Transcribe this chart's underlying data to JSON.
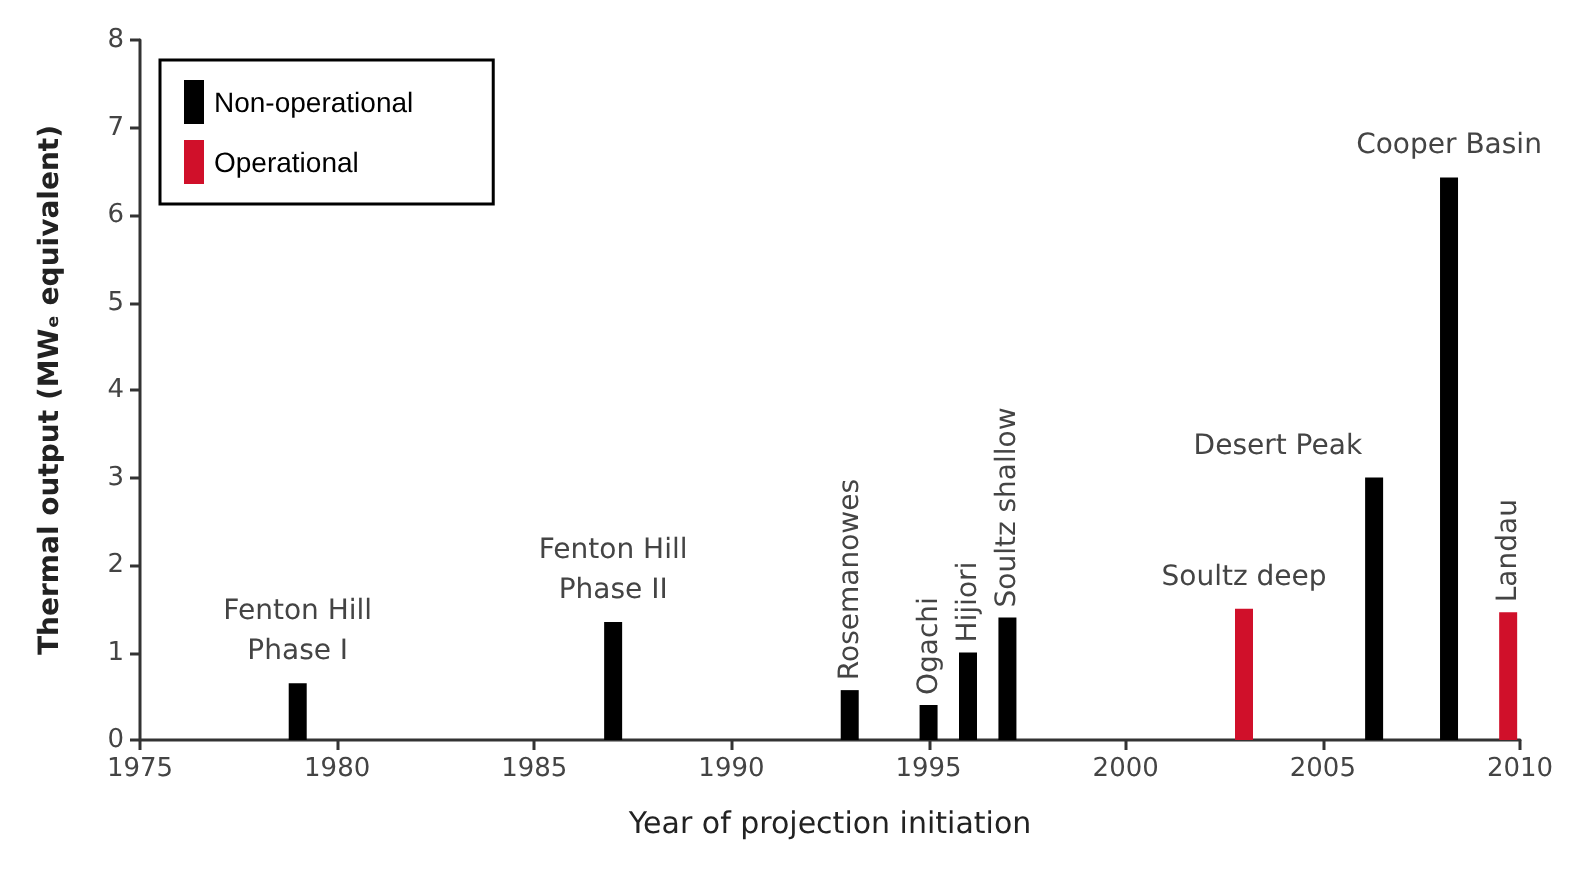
{
  "chart_data": {
    "type": "bar",
    "xlabel": "Year of projection initiation",
    "ylabel": "Thermal output (MWₑ equivalent)",
    "xlim": [
      1975,
      2010
    ],
    "xticks": [
      1975,
      1980,
      1985,
      1990,
      1995,
      2000,
      2005,
      2010
    ],
    "ylim": [
      0,
      8
    ],
    "yticks": [
      0,
      1,
      2,
      3,
      4,
      5,
      6,
      7,
      8
    ],
    "legend": "top left",
    "grid": false,
    "series": [
      {
        "name": "Non-operational",
        "color": "#000000",
        "x": [
          1979,
          1987,
          1993,
          1995,
          1996,
          1997,
          2006.3,
          2008.2
        ],
        "values": [
          0.65,
          1.35,
          0.57,
          0.4,
          1.0,
          1.4,
          3.0,
          6.43
        ]
      },
      {
        "name": "Operational",
        "color": "#d0102a",
        "x": [
          2003,
          2009.7
        ],
        "values": [
          1.5,
          1.46
        ]
      }
    ],
    "annotations": [
      {
        "text": "Fenton Hill\nPhase I",
        "x": 1979,
        "y": 0.65
      },
      {
        "text": "Fenton Hill\nPhase II",
        "x": 1987,
        "y": 1.35
      },
      {
        "text": "Rosemanowes",
        "x": 1993,
        "y": 0.57
      },
      {
        "text": "Ogachi",
        "x": 1995,
        "y": 0.4
      },
      {
        "text": "Hijiori",
        "x": 1996,
        "y": 1.0
      },
      {
        "text": "Soultz shallow",
        "x": 1997,
        "y": 1.4
      },
      {
        "text": "Soultz deep",
        "x": 2003,
        "y": 1.5
      },
      {
        "text": "Desert Peak",
        "x": 2006.3,
        "y": 3.0
      },
      {
        "text": "Cooper Basin",
        "x": 2008.2,
        "y": 6.43
      },
      {
        "text": "Landau",
        "x": 2009.7,
        "y": 1.46
      }
    ]
  }
}
